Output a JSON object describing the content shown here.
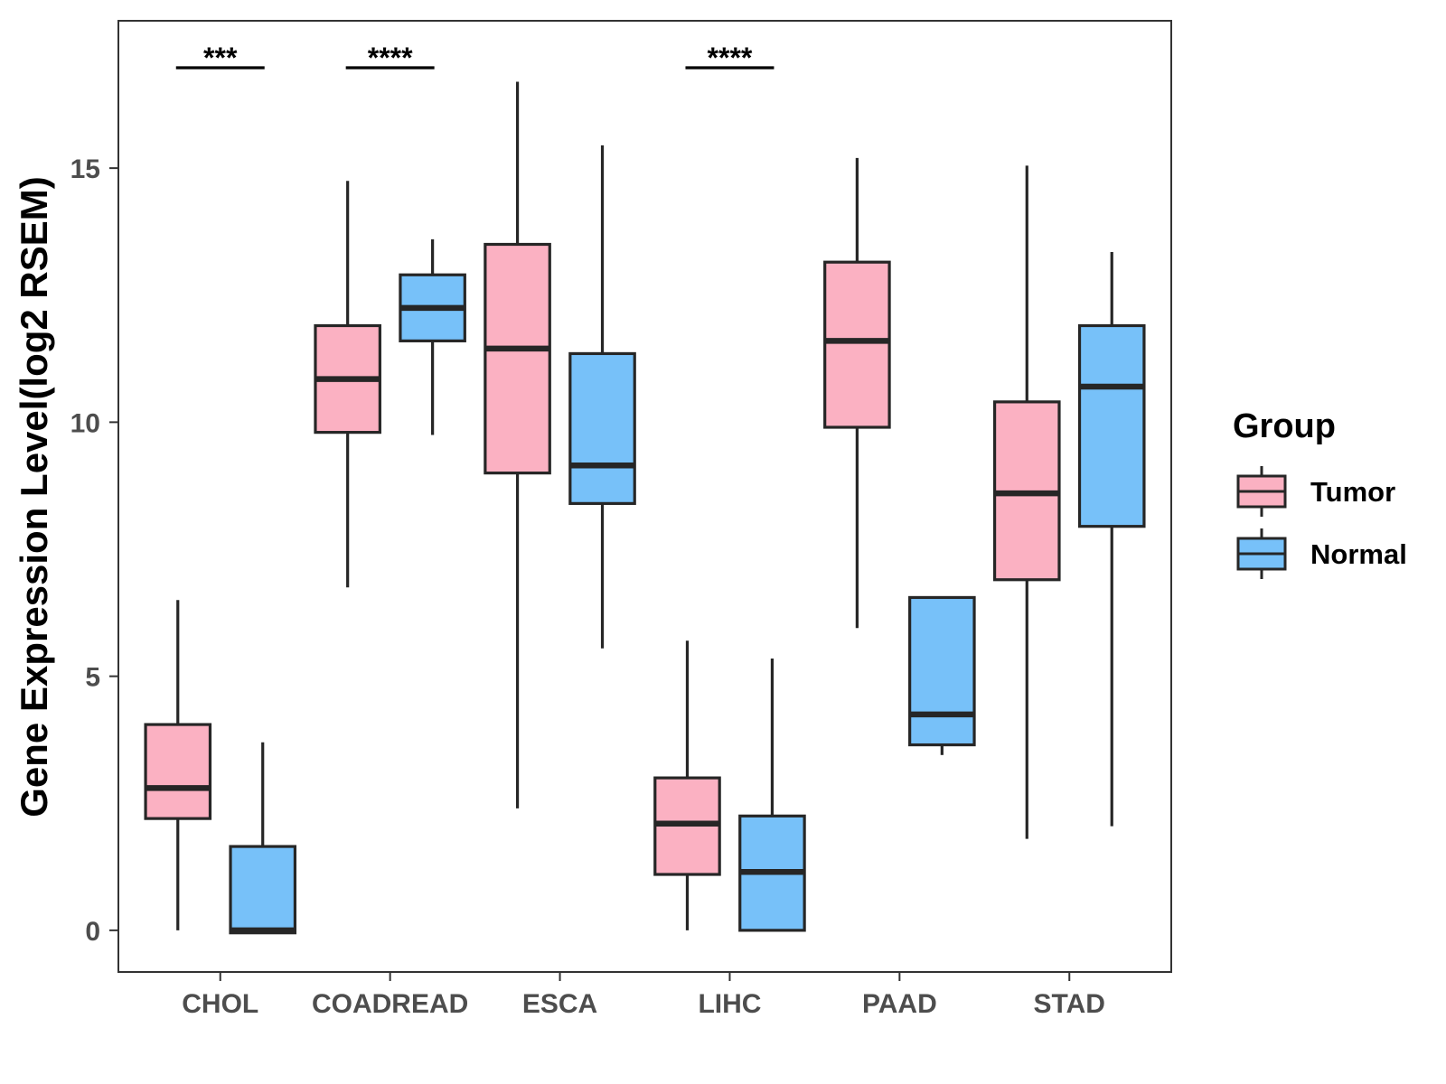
{
  "chart_data": {
    "type": "boxplot",
    "title": "",
    "xlabel": "",
    "ylabel": "Gene Expression Level(log2 RSEM)",
    "ylim": [
      -0.82,
      17.9
    ],
    "yticks": [
      0,
      5,
      10,
      15
    ],
    "categories": [
      "CHOL",
      "COADREAD",
      "ESCA",
      "LIHC",
      "PAAD",
      "STAD"
    ],
    "legend": {
      "title": "Group",
      "position": "right",
      "entries": [
        {
          "name": "Tumor",
          "color": "#fbb1c2"
        },
        {
          "name": "Normal",
          "color": "#77c1f9"
        }
      ]
    },
    "series": [
      {
        "name": "Tumor",
        "color": "#fbb1c2",
        "boxes": [
          {
            "category": "CHOL",
            "min": 0.0,
            "q1": 2.2,
            "median": 2.8,
            "q3": 4.05,
            "max": 6.5
          },
          {
            "category": "COADREAD",
            "min": 6.75,
            "q1": 9.8,
            "median": 10.85,
            "q3": 11.9,
            "max": 14.75
          },
          {
            "category": "ESCA",
            "min": 2.4,
            "q1": 9.0,
            "median": 11.45,
            "q3": 13.5,
            "max": 16.7
          },
          {
            "category": "LIHC",
            "min": 0.0,
            "q1": 1.1,
            "median": 2.1,
            "q3": 3.0,
            "max": 5.7
          },
          {
            "category": "PAAD",
            "min": 5.95,
            "q1": 9.9,
            "median": 11.6,
            "q3": 13.15,
            "max": 15.2
          },
          {
            "category": "STAD",
            "min": 1.8,
            "q1": 6.9,
            "median": 8.6,
            "q3": 10.4,
            "max": 15.05
          }
        ]
      },
      {
        "name": "Normal",
        "color": "#77c1f9",
        "boxes": [
          {
            "category": "CHOL",
            "min": -0.05,
            "q1": -0.05,
            "median": 0.0,
            "q3": 1.65,
            "max": 3.7
          },
          {
            "category": "COADREAD",
            "min": 9.75,
            "q1": 11.6,
            "median": 12.25,
            "q3": 12.9,
            "max": 13.6
          },
          {
            "category": "ESCA",
            "min": 5.55,
            "q1": 8.4,
            "median": 9.15,
            "q3": 11.35,
            "max": 15.45
          },
          {
            "category": "LIHC",
            "min": 0.0,
            "q1": 0.0,
            "median": 1.15,
            "q3": 2.25,
            "max": 5.35
          },
          {
            "category": "PAAD",
            "min": 3.45,
            "q1": 3.65,
            "median": 4.25,
            "q3": 6.55,
            "max": 6.55
          },
          {
            "category": "STAD",
            "min": 2.05,
            "q1": 7.95,
            "median": 10.7,
            "q3": 11.9,
            "max": 13.35
          }
        ]
      }
    ],
    "significance": [
      {
        "category": "CHOL",
        "label": "***"
      },
      {
        "category": "COADREAD",
        "label": "****"
      },
      {
        "category": "LIHC",
        "label": "****"
      }
    ]
  }
}
